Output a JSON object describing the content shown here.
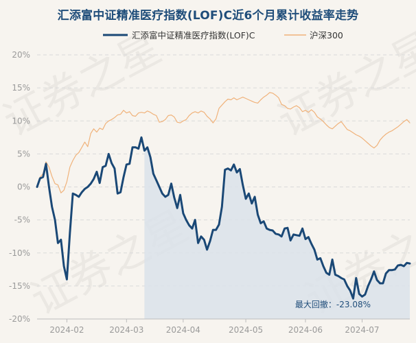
{
  "chart_data": {
    "type": "line",
    "title": "汇添富中证精准医疗指数(LOF)C近6个月累计收益率走势",
    "watermark": "证券之星",
    "xlabel": "",
    "ylabel": "",
    "ylim": [
      -20,
      20
    ],
    "ytick_values": [
      20,
      15,
      10,
      5,
      0,
      -5,
      -10,
      -15,
      -20
    ],
    "ytick_labels": [
      "20%",
      "15%",
      "10%",
      "5%",
      "0%",
      "-5%",
      "-10%",
      "-15%",
      "-20%"
    ],
    "xtick_labels": [
      "2024-02",
      "2024-03",
      "2024-04",
      "2024-05",
      "2024-06",
      "2024-07"
    ],
    "xtick_positions": [
      10,
      30,
      49,
      70,
      90,
      109
    ],
    "n_days": 126,
    "legend": [
      "汇添富中证精准医疗指数(LOF)C",
      "沪深300"
    ],
    "max_drawdown_label": "最大回撤：-23.08%",
    "max_drawdown_start_index": 36,
    "colors": {
      "fund": "#1a4876",
      "index": "#f0b27a",
      "drawdown_fill": "#dbe2ea",
      "grid": "#d9d9d9"
    },
    "series": [
      {
        "name": "汇添富中证精准医疗指数(LOF)C",
        "values": [
          0,
          1.3,
          1.5,
          3.5,
          0,
          -3,
          -5,
          -8.5,
          -8,
          -12,
          -14,
          -7,
          -1,
          -1.2,
          -1.5,
          -0.8,
          -0.3,
          0,
          0.5,
          1.2,
          2.3,
          0.6,
          3,
          3.2,
          5,
          3.6,
          2.8,
          -1,
          -0.8,
          1.5,
          3.4,
          3.5,
          6,
          6,
          5.8,
          7.5,
          5.5,
          6,
          4.5,
          2,
          1,
          0,
          -1,
          -1.5,
          -1.2,
          0.5,
          -1.6,
          -3.2,
          -1.2,
          -4,
          -5,
          -5.8,
          -6.3,
          -5,
          -8.5,
          -7.5,
          -8,
          -9.5,
          -8.2,
          -6.5,
          -6.5,
          -5.7,
          -3,
          2.6,
          2.8,
          2.5,
          3.4,
          2.2,
          2.7,
          0.3,
          -1.8,
          -1,
          -2.5,
          -1.5,
          -4.2,
          -5.5,
          -5.2,
          -6.3,
          -6.5,
          -6.6,
          -7.1,
          -7.2,
          -7.5,
          -6.3,
          -6.2,
          -8.1,
          -7.2,
          -7.3,
          -7.4,
          -6.3,
          -7.9,
          -7.6,
          -8.6,
          -9.5,
          -11,
          -10.8,
          -12,
          -13,
          -13.3,
          -11,
          -13.3,
          -13.5,
          -13.8,
          -14,
          -15,
          -15.7,
          -16.9,
          -13.8,
          -16.2,
          -16.6,
          -16.3,
          -15,
          -14,
          -12.8,
          -14.1,
          -14.6,
          -14.6,
          -13.1,
          -12.6,
          -12.6,
          -12.5,
          -11.9,
          -11.8,
          -12,
          -11.5,
          -11.6
        ]
      },
      {
        "name": "沪深300",
        "values": [
          0,
          1.5,
          2,
          3.8,
          3,
          1.6,
          0.5,
          0.3,
          -0.9,
          -0.5,
          0.8,
          3,
          4,
          4.8,
          5.2,
          6,
          6.8,
          6.1,
          8.1,
          8.8,
          8.3,
          8.9,
          8.7,
          9.6,
          10,
          10.2,
          10.5,
          10.9,
          11,
          11.6,
          11.2,
          11.4,
          10.8,
          10.7,
          11.2,
          11.3,
          11.2,
          11.5,
          11.3,
          11,
          10.8,
          9.8,
          9.9,
          10.2,
          10.8,
          10.9,
          10.6,
          9.8,
          9.7,
          10,
          10.2,
          10.8,
          11.2,
          11.4,
          11.2,
          11.5,
          11.3,
          10.7,
          10.3,
          9.7,
          10.3,
          11.9,
          12.4,
          12.9,
          13.3,
          13.2,
          13.5,
          13.2,
          13.4,
          13.6,
          13.4,
          13.2,
          13,
          12.8,
          12.7,
          13.2,
          13.6,
          13.9,
          14.3,
          14.2,
          13.9,
          13.5,
          12.5,
          12.3,
          11.9,
          11.8,
          12.1,
          12.3,
          12,
          11.4,
          11.6,
          11.3,
          11.7,
          11.3,
          10.6,
          10.3,
          9.9,
          9.4,
          9,
          8.8,
          9.2,
          9.6,
          9.9,
          9.3,
          8.7,
          8.5,
          8.2,
          7.9,
          7.7,
          7.4,
          7,
          6.6,
          6.2,
          5.9,
          6.3,
          7.1,
          7.6,
          8,
          8.3,
          8.5,
          8.8,
          9.1,
          9.5,
          9.9,
          10.2,
          9.7
        ]
      }
    ]
  }
}
